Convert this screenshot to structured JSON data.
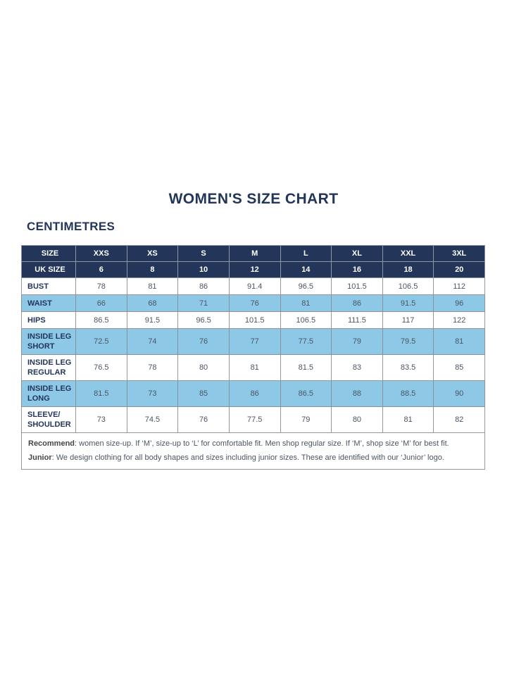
{
  "page": {
    "title": "WOMEN'S SIZE CHART",
    "unit_heading": "CENTIMETRES"
  },
  "colors": {
    "navy": "#233659",
    "light_blue": "#8DC9E7",
    "value_text": "#4B5563",
    "note_text": "#58595B",
    "border": "#979797"
  },
  "table": {
    "size_row": {
      "label": "SIZE",
      "values": [
        "XXS",
        "XS",
        "S",
        "M",
        "L",
        "XL",
        "XXL",
        "3XL"
      ]
    },
    "uk_size_row": {
      "label": "UK SIZE",
      "values": [
        "6",
        "8",
        "10",
        "12",
        "14",
        "16",
        "18",
        "20"
      ]
    },
    "measurement_rows": [
      {
        "label": "BUST",
        "highlight": false,
        "values": [
          "78",
          "81",
          "86",
          "91.4",
          "96.5",
          "101.5",
          "106.5",
          "112"
        ]
      },
      {
        "label": "WAIST",
        "highlight": true,
        "values": [
          "66",
          "68",
          "71",
          "76",
          "81",
          "86",
          "91.5",
          "96"
        ]
      },
      {
        "label": "HIPS",
        "highlight": false,
        "values": [
          "86.5",
          "91.5",
          "96.5",
          "101.5",
          "106.5",
          "111.5",
          "117",
          "122"
        ]
      },
      {
        "label": "INSIDE LEG SHORT",
        "highlight": true,
        "values": [
          "72.5",
          "74",
          "76",
          "77",
          "77.5",
          "79",
          "79.5",
          "81"
        ]
      },
      {
        "label": "INSIDE LEG REGULAR",
        "highlight": false,
        "values": [
          "76.5",
          "78",
          "80",
          "81",
          "81.5",
          "83",
          "83.5",
          "85"
        ]
      },
      {
        "label": "INSIDE LEG LONG",
        "highlight": true,
        "values": [
          "81.5",
          "73",
          "85",
          "86",
          "86.5",
          "88",
          "88.5",
          "90"
        ]
      },
      {
        "label": "SLEEVE/ SHOULDER",
        "highlight": false,
        "values": [
          "73",
          "74.5",
          "76",
          "77.5",
          "79",
          "80",
          "81",
          "82"
        ]
      }
    ],
    "notes": [
      {
        "bold": "Recommend",
        "text": ": women size-up. If ‘M’, size-up to ‘L’ for comfortable fit. Men shop regular size. If ‘M’, shop size ‘M’ for best fit."
      },
      {
        "bold": "Junior",
        "text": ": We design clothing for all body shapes and sizes including junior sizes. These are identified with our ‘Junior’ logo."
      }
    ]
  }
}
